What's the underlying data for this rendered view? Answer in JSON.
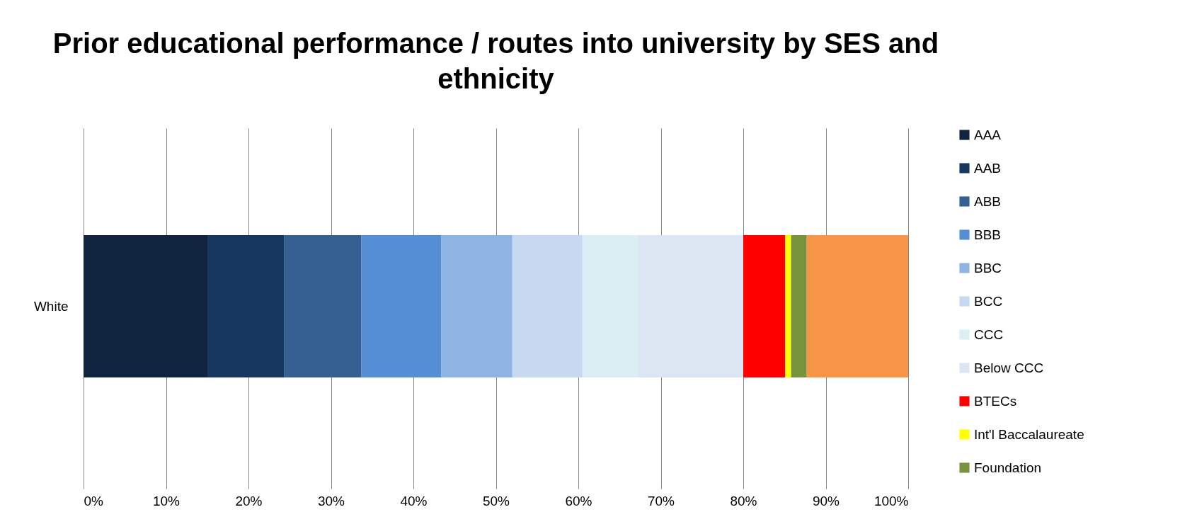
{
  "chart_data": {
    "type": "bar",
    "orientation": "horizontal",
    "stacked": true,
    "title": "Prior educational performance / routes into university by SES and ethnicity",
    "categories": [
      "White"
    ],
    "series": [
      {
        "name": "AAA",
        "color": "#10243f",
        "values": [
          15.1
        ]
      },
      {
        "name": "AAB",
        "color": "#17375e",
        "values": [
          9.2
        ]
      },
      {
        "name": "ABB",
        "color": "#366092",
        "values": [
          9.4
        ]
      },
      {
        "name": "BBB",
        "color": "#558ed5",
        "values": [
          9.7
        ]
      },
      {
        "name": "BBC",
        "color": "#8eb4e3",
        "values": [
          8.6
        ]
      },
      {
        "name": "BCC",
        "color": "#c6d9f1",
        "values": [
          8.5
        ]
      },
      {
        "name": "CCC",
        "color": "#dbeef4",
        "values": [
          6.8
        ]
      },
      {
        "name": "Below CCC",
        "color": "#dce6f2",
        "values": [
          12.7
        ]
      },
      {
        "name": "BTECs",
        "color": "#ff0000",
        "values": [
          5.1
        ]
      },
      {
        "name": "Int'l Baccalaureate",
        "color": "#ffff00",
        "values": [
          0.7
        ]
      },
      {
        "name": "Foundation",
        "color": "#77933c",
        "values": [
          1.9
        ]
      },
      {
        "color": "#f79646",
        "values": [
          12.3
        ]
      }
    ],
    "xlim": [
      0,
      100
    ],
    "xticks": [
      {
        "value": 0,
        "label": "0%"
      },
      {
        "value": 10,
        "label": "10%"
      },
      {
        "value": 20,
        "label": "20%"
      },
      {
        "value": 30,
        "label": "30%"
      },
      {
        "value": 40,
        "label": "40%"
      },
      {
        "value": 50,
        "label": "50%"
      },
      {
        "value": 60,
        "label": "60%"
      },
      {
        "value": 70,
        "label": "70%"
      },
      {
        "value": 80,
        "label": "80%"
      },
      {
        "value": 90,
        "label": "90%"
      },
      {
        "value": 100,
        "label": "100%"
      }
    ],
    "grid": "x",
    "legend": "right"
  }
}
